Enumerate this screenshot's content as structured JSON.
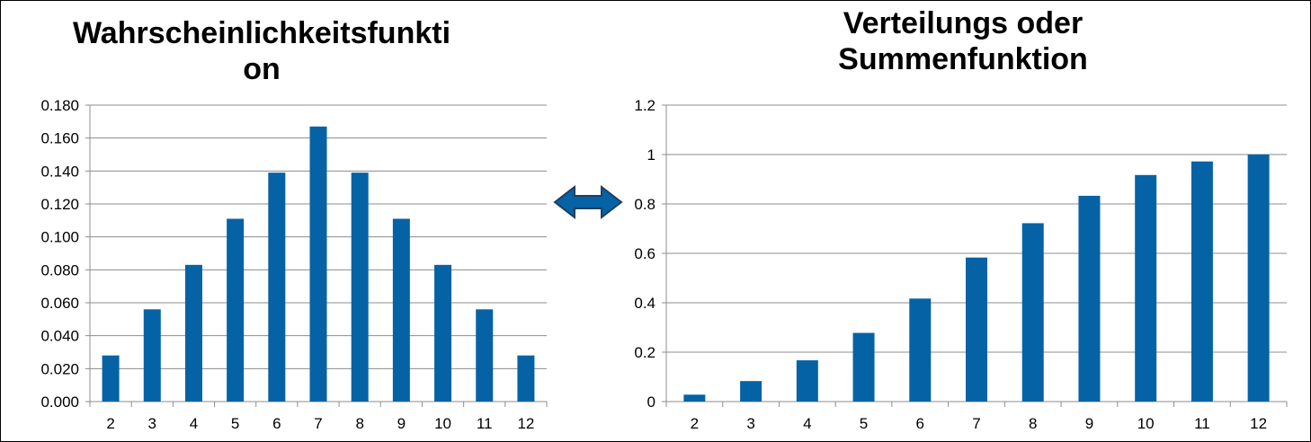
{
  "left_chart": {
    "title_line1": "Wahrscheinlichkeitsfunkti",
    "title_line2": "on"
  },
  "right_chart": {
    "title_line1": "Verteilungs oder",
    "title_line2": "Summenfunktion"
  },
  "colors": {
    "bar": "#0563A5",
    "grid": "#8C8C8C",
    "arrow_fill": "#0563A5",
    "arrow_stroke": "#1F3F5F"
  },
  "chart_data": [
    {
      "type": "bar",
      "title": "Wahrscheinlichkeitsfunktion",
      "categories": [
        "2",
        "3",
        "4",
        "5",
        "6",
        "7",
        "8",
        "9",
        "10",
        "11",
        "12"
      ],
      "values": [
        0.028,
        0.056,
        0.083,
        0.111,
        0.139,
        0.167,
        0.139,
        0.111,
        0.083,
        0.056,
        0.028
      ],
      "ylim": [
        0,
        0.18
      ],
      "yticks": [
        "0.000",
        "0.020",
        "0.040",
        "0.060",
        "0.080",
        "0.100",
        "0.120",
        "0.140",
        "0.160",
        "0.180"
      ],
      "grid": true
    },
    {
      "type": "bar",
      "title": "Verteilungs oder Summenfunktion",
      "categories": [
        "2",
        "3",
        "4",
        "5",
        "6",
        "7",
        "8",
        "9",
        "10",
        "11",
        "12"
      ],
      "values": [
        0.028,
        0.083,
        0.167,
        0.278,
        0.417,
        0.583,
        0.722,
        0.833,
        0.917,
        0.972,
        1.0
      ],
      "ylim": [
        0,
        1.2
      ],
      "yticks": [
        "0",
        "0.2",
        "0.4",
        "0.6",
        "0.8",
        "1",
        "1.2"
      ],
      "grid": true
    }
  ]
}
